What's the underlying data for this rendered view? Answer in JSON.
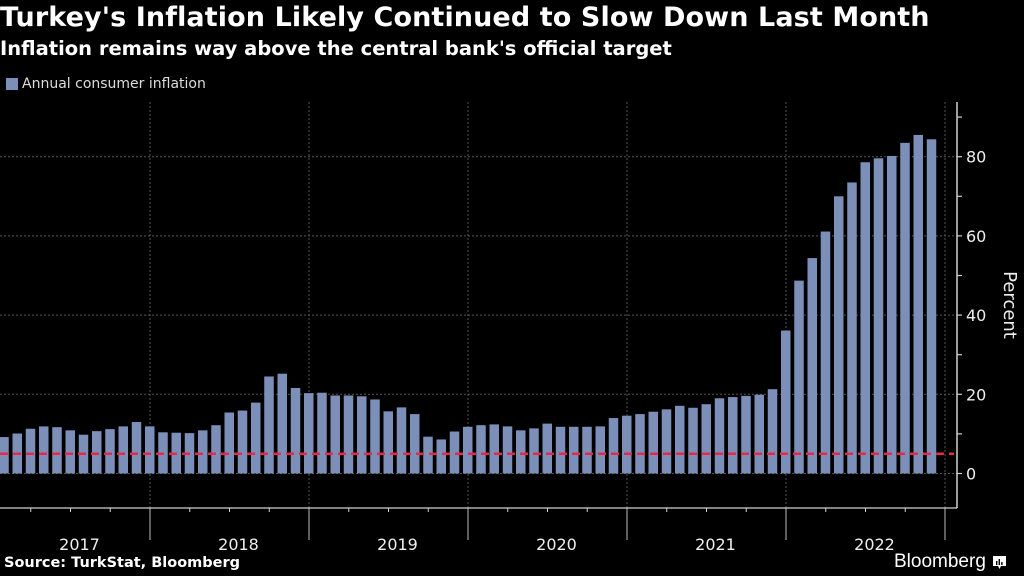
{
  "header": {
    "title": "Turkey's Inflation Likely Continued to Slow Down Last Month",
    "subtitle": "Inflation remains way above the central bank's official target"
  },
  "footer": {
    "source": "Source: TurkStat, Bloomberg",
    "brand": "Bloomberg",
    "brand_icon": "bloomberg-chart-icon"
  },
  "colors": {
    "background": "#000000",
    "bar": "#7b8fb8",
    "target_line": "#e8284a",
    "grid": "#555555",
    "axis": "#d0d0d0"
  },
  "chart_data": {
    "type": "bar",
    "title": "Turkey's Inflation Likely Continued to Slow Down Last Month",
    "subtitle": "Inflation remains way above the central bank's official target",
    "xlabel": "",
    "ylabel": "Percent",
    "ylim": [
      0,
      95
    ],
    "yticks": [
      0,
      20,
      40,
      60,
      80
    ],
    "grid": true,
    "legend": {
      "position": "top-left",
      "entries": [
        "Annual consumer inflation"
      ]
    },
    "x_tick_labels": [
      "2017",
      "2018",
      "2019",
      "2020",
      "2021",
      "2022"
    ],
    "start": "2017-01",
    "end": "2022-11",
    "reference_lines": [
      {
        "name": "Central bank official target",
        "value": 5,
        "style": "dashed"
      }
    ],
    "series": [
      {
        "name": "Annual consumer inflation",
        "values": [
          9.2,
          10.1,
          11.3,
          11.9,
          11.7,
          10.9,
          9.8,
          10.7,
          11.2,
          11.9,
          13.0,
          11.9,
          10.4,
          10.3,
          10.2,
          10.9,
          12.2,
          15.4,
          15.9,
          17.9,
          24.5,
          25.2,
          21.6,
          20.3,
          20.4,
          19.7,
          19.7,
          19.5,
          18.7,
          15.7,
          16.7,
          15.0,
          9.3,
          8.6,
          10.6,
          11.8,
          12.2,
          12.4,
          11.9,
          10.9,
          11.4,
          12.6,
          11.8,
          11.8,
          11.8,
          11.9,
          14.0,
          14.6,
          15.0,
          15.6,
          16.2,
          17.1,
          16.6,
          17.5,
          19.0,
          19.3,
          19.6,
          19.9,
          21.3,
          36.1,
          48.7,
          54.4,
          61.1,
          70.0,
          73.5,
          78.6,
          79.6,
          80.2,
          83.5,
          85.5,
          84.4
        ]
      }
    ]
  }
}
